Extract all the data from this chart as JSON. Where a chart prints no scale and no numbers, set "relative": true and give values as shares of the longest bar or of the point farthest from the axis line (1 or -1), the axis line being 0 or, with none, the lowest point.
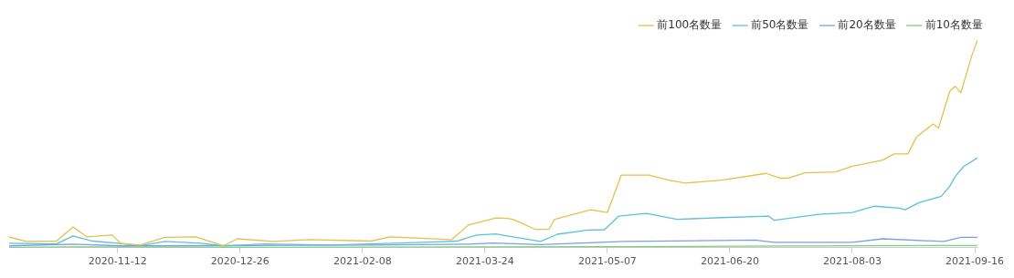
{
  "chart_data": {
    "type": "line",
    "relative": true,
    "legend": "top right",
    "marker": "none",
    "line_style": "solid",
    "xlim": [
      "2020-10-04",
      "2021-09-17"
    ],
    "xticks": [
      "2020-11-12",
      "2020-12-26",
      "2021-02-08",
      "2021-03-24",
      "2021-05-07",
      "2021-06-20",
      "2021-08-03",
      "2021-09-16"
    ],
    "series": [
      {
        "name": "前100名数量",
        "color": "#e8bf4a",
        "x": [
          "2020-10-04",
          "2020-10-10",
          "2020-10-21",
          "2020-10-27",
          "2020-11-01",
          "2020-11-10",
          "2020-11-13",
          "2020-11-20",
          "2020-11-29",
          "2020-12-10",
          "2020-12-20",
          "2020-12-25",
          "2021-01-07",
          "2021-01-20",
          "2021-02-11",
          "2021-02-18",
          "2021-03-12",
          "2021-03-18",
          "2021-03-28",
          "2021-04-01",
          "2021-04-03",
          "2021-04-11",
          "2021-04-16",
          "2021-04-18",
          "2021-05-01",
          "2021-05-07",
          "2021-05-12",
          "2021-05-22",
          "2021-05-29",
          "2021-06-04",
          "2021-06-17",
          "2021-07-03",
          "2021-07-08",
          "2021-07-11",
          "2021-07-17",
          "2021-07-28",
          "2021-08-03",
          "2021-08-14",
          "2021-08-18",
          "2021-08-23",
          "2021-08-26",
          "2021-09-01",
          "2021-09-03",
          "2021-09-07",
          "2021-09-09",
          "2021-09-11",
          "2021-09-15",
          "2021-09-17"
        ],
        "values": [
          0.052,
          0.03,
          0.032,
          0.1,
          0.052,
          0.061,
          0.022,
          0.013,
          0.05,
          0.052,
          0.01,
          0.043,
          0.03,
          0.039,
          0.032,
          0.052,
          0.039,
          0.109,
          0.143,
          0.141,
          0.137,
          0.089,
          0.089,
          0.137,
          0.183,
          0.17,
          0.35,
          0.35,
          0.326,
          0.311,
          0.326,
          0.358,
          0.335,
          0.335,
          0.361,
          0.365,
          0.393,
          0.422,
          0.452,
          0.452,
          0.532,
          0.596,
          0.576,
          0.753,
          0.778,
          0.746,
          0.927,
          1
        ]
      },
      {
        "name": "前50名数量",
        "color": "#5bc0de",
        "x": [
          "2020-10-04",
          "2020-10-21",
          "2020-10-27",
          "2020-11-03",
          "2020-11-12",
          "2020-11-20",
          "2020-11-29",
          "2020-12-12",
          "2020-12-20",
          "2021-01-04",
          "2021-01-27",
          "2021-03-02",
          "2021-03-14",
          "2021-03-21",
          "2021-03-28",
          "2021-04-01",
          "2021-04-13",
          "2021-04-19",
          "2021-04-30",
          "2021-05-06",
          "2021-05-11",
          "2021-05-21",
          "2021-06-01",
          "2021-06-17",
          "2021-07-04",
          "2021-07-06",
          "2021-07-22",
          "2021-08-03",
          "2021-08-11",
          "2021-08-20",
          "2021-08-22",
          "2021-08-27",
          "2021-09-04",
          "2021-09-07",
          "2021-09-09",
          "2021-09-12",
          "2021-09-17"
        ],
        "values": [
          0.022,
          0.018,
          0.057,
          0.032,
          0.022,
          0.01,
          0.03,
          0.022,
          0.009,
          0.018,
          0.013,
          0.026,
          0.032,
          0.061,
          0.067,
          0.057,
          0.03,
          0.065,
          0.085,
          0.087,
          0.152,
          0.165,
          0.137,
          0.145,
          0.152,
          0.132,
          0.161,
          0.17,
          0.2,
          0.191,
          0.183,
          0.217,
          0.248,
          0.296,
          0.343,
          0.391,
          0.433
        ]
      },
      {
        "name": "前20名数量",
        "color": "#7b9ee8",
        "x": [
          "2020-10-04",
          "2020-10-27",
          "2020-11-13",
          "2020-12-25",
          "2021-02-11",
          "2021-03-18",
          "2021-03-27",
          "2021-04-13",
          "2021-05-13",
          "2021-06-29",
          "2021-07-06",
          "2021-08-03",
          "2021-08-14",
          "2021-09-05",
          "2021-09-11",
          "2021-09-17"
        ],
        "values": [
          0.009,
          0.017,
          0.009,
          0.011,
          0.013,
          0.017,
          0.023,
          0.015,
          0.03,
          0.037,
          0.026,
          0.026,
          0.043,
          0.03,
          0.05,
          0.05
        ]
      },
      {
        "name": "前10名数量",
        "color": "#7ccf7c",
        "x": [
          "2020-10-04",
          "2020-10-27",
          "2021-01-09",
          "2021-03-27",
          "2021-06-19",
          "2021-09-17"
        ],
        "values": [
          0.002,
          0.004,
          0.002,
          0.004,
          0.007,
          0.011
        ]
      }
    ]
  }
}
